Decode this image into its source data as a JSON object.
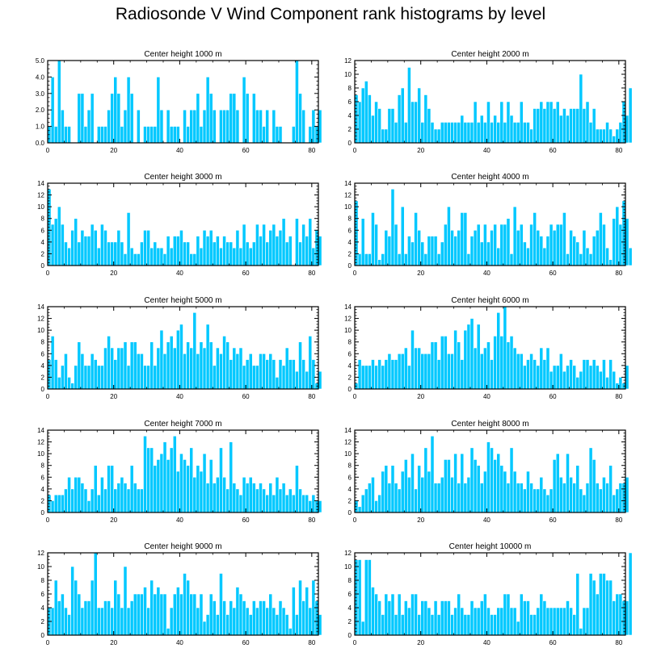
{
  "title": "Radiosonde V Wind Component rank histograms by level",
  "bar_color": "#00C8FF",
  "chart_data": [
    {
      "type": "bar",
      "title": "Center height 1000 m",
      "xlim": [
        0,
        82
      ],
      "ylim": [
        0,
        5
      ],
      "yticks": [
        0,
        1,
        2,
        3,
        4,
        5
      ],
      "ytick_labels": [
        "0.0",
        "1.0",
        "2.0",
        "3.0",
        "4.0",
        "5.0"
      ],
      "xticks": [
        0,
        20,
        40,
        60,
        80
      ],
      "xtick_labels": [
        "0",
        "20",
        "40",
        "60",
        "80"
      ],
      "values": [
        1,
        4,
        1,
        5,
        2,
        1,
        1,
        0,
        0,
        3,
        3,
        1,
        2,
        3,
        0,
        1,
        1,
        1,
        2,
        3,
        4,
        3,
        1,
        2,
        4,
        3,
        0,
        2,
        0,
        1,
        1,
        1,
        1,
        4,
        2,
        0,
        2,
        1,
        1,
        1,
        0,
        2,
        1,
        2,
        2,
        3,
        1,
        2,
        4,
        3,
        2,
        0,
        2,
        2,
        2,
        3,
        3,
        2,
        0,
        4,
        3,
        0,
        3,
        2,
        2,
        1,
        2,
        0,
        2,
        1,
        1,
        0,
        0,
        0,
        1,
        5,
        3,
        2,
        0,
        1,
        2,
        1,
        2
      ]
    },
    {
      "type": "bar",
      "title": "Center height 2000 m",
      "xlim": [
        0,
        82
      ],
      "ylim": [
        0,
        12
      ],
      "yticks": [
        0,
        2,
        4,
        6,
        8,
        10,
        12
      ],
      "ytick_labels": [
        "0",
        "2",
        "4",
        "6",
        "8",
        "10",
        "12"
      ],
      "xticks": [
        0,
        20,
        40,
        60,
        80
      ],
      "xtick_labels": [
        "0",
        "20",
        "40",
        "60",
        "80"
      ],
      "values": [
        7,
        6,
        8,
        9,
        7,
        4,
        6,
        5,
        2,
        2,
        5,
        5,
        3,
        7,
        8,
        3,
        11,
        6,
        6,
        8,
        3,
        7,
        5,
        3,
        2,
        2,
        3,
        3,
        3,
        3,
        3,
        3,
        4,
        3,
        3,
        3,
        6,
        3,
        4,
        3,
        6,
        3,
        4,
        3,
        6,
        3,
        6,
        4,
        3,
        3,
        6,
        3,
        3,
        2,
        5,
        5,
        6,
        5,
        6,
        6,
        5,
        6,
        4,
        5,
        4,
        5,
        5,
        5,
        10,
        5,
        6,
        3,
        5,
        2,
        2,
        2,
        3,
        2,
        1,
        2,
        3,
        6,
        4,
        8
      ]
    },
    {
      "type": "bar",
      "title": "Center height 3000 m",
      "xlim": [
        0,
        82
      ],
      "ylim": [
        0,
        14
      ],
      "yticks": [
        0,
        2,
        4,
        6,
        8,
        10,
        12,
        14
      ],
      "ytick_labels": [
        "0",
        "2",
        "4",
        "6",
        "8",
        "10",
        "12",
        "14"
      ],
      "xticks": [
        0,
        20,
        40,
        60,
        80
      ],
      "xtick_labels": [
        "0",
        "20",
        "40",
        "60",
        "80"
      ],
      "values": [
        13,
        7,
        8,
        10,
        7,
        4,
        3,
        6,
        8,
        4,
        6,
        5,
        5,
        7,
        6,
        3,
        7,
        6,
        4,
        4,
        4,
        6,
        4,
        2,
        9,
        3,
        2,
        2,
        4,
        6,
        6,
        3,
        4,
        3,
        3,
        2,
        5,
        3,
        5,
        5,
        6,
        4,
        4,
        2,
        2,
        5,
        3,
        6,
        5,
        6,
        4,
        5,
        3,
        5,
        4,
        4,
        3,
        6,
        3,
        7,
        4,
        3,
        4,
        7,
        5,
        7,
        4,
        6,
        7,
        5,
        6,
        8,
        4,
        5,
        0,
        8,
        4,
        7,
        5,
        8,
        3,
        6,
        5
      ]
    },
    {
      "type": "bar",
      "title": "Center height 4000 m",
      "xlim": [
        0,
        82
      ],
      "ylim": [
        0,
        14
      ],
      "yticks": [
        0,
        2,
        4,
        6,
        8,
        10,
        12,
        14
      ],
      "ytick_labels": [
        "0",
        "2",
        "4",
        "6",
        "8",
        "10",
        "12",
        "14"
      ],
      "xticks": [
        0,
        20,
        40,
        60,
        80
      ],
      "xtick_labels": [
        "0",
        "20",
        "40",
        "60",
        "80"
      ],
      "values": [
        11,
        2,
        8,
        2,
        2,
        9,
        7,
        1,
        2,
        6,
        5,
        13,
        7,
        2,
        10,
        2,
        5,
        4,
        9,
        6,
        4,
        2,
        5,
        5,
        5,
        2,
        4,
        7,
        10,
        6,
        5,
        6,
        9,
        9,
        2,
        5,
        6,
        7,
        4,
        7,
        4,
        6,
        7,
        3,
        7,
        7,
        8,
        2,
        10,
        6,
        7,
        4,
        3,
        7,
        9,
        6,
        5,
        3,
        5,
        7,
        6,
        7,
        7,
        9,
        2,
        6,
        5,
        4,
        2,
        6,
        3,
        2,
        5,
        6,
        9,
        7,
        3,
        1,
        8,
        10,
        7,
        11,
        8,
        3
      ]
    },
    {
      "type": "bar",
      "title": "Center height 5000 m",
      "xlim": [
        0,
        82
      ],
      "ylim": [
        0,
        14
      ],
      "yticks": [
        0,
        2,
        4,
        6,
        8,
        10,
        12,
        14
      ],
      "ytick_labels": [
        "0",
        "2",
        "4",
        "6",
        "8",
        "10",
        "12",
        "14"
      ],
      "xticks": [
        0,
        20,
        40,
        60,
        80
      ],
      "xtick_labels": [
        "0",
        "20",
        "40",
        "60",
        "80"
      ],
      "values": [
        5,
        9,
        5,
        2,
        4,
        6,
        2,
        1,
        4,
        8,
        6,
        4,
        4,
        6,
        5,
        4,
        4,
        7,
        9,
        7,
        5,
        7,
        7,
        8,
        4,
        8,
        8,
        6,
        6,
        4,
        4,
        8,
        4,
        7,
        10,
        6,
        8,
        9,
        7,
        10,
        11,
        6,
        8,
        7,
        13,
        6,
        8,
        7,
        11,
        8,
        4,
        7,
        6,
        9,
        8,
        5,
        7,
        6,
        7,
        4,
        5,
        6,
        4,
        4,
        6,
        6,
        5,
        6,
        5,
        2,
        5,
        4,
        7,
        5,
        5,
        3,
        8,
        5,
        3,
        9,
        5,
        1,
        3
      ]
    },
    {
      "type": "bar",
      "title": "Center height 6000 m",
      "xlim": [
        0,
        82
      ],
      "ylim": [
        0,
        14
      ],
      "yticks": [
        0,
        2,
        4,
        6,
        8,
        10,
        12,
        14
      ],
      "ytick_labels": [
        "0",
        "2",
        "4",
        "6",
        "8",
        "10",
        "12",
        "14"
      ],
      "xticks": [
        0,
        20,
        40,
        60,
        80
      ],
      "xtick_labels": [
        "0",
        "20",
        "40",
        "60",
        "80"
      ],
      "values": [
        1,
        5,
        4,
        4,
        4,
        5,
        4,
        5,
        4,
        5,
        6,
        5,
        5,
        6,
        6,
        7,
        4,
        10,
        7,
        7,
        6,
        6,
        6,
        8,
        8,
        5,
        9,
        9,
        6,
        6,
        10,
        8,
        5,
        10,
        11,
        12,
        7,
        11,
        6,
        7,
        8,
        5,
        9,
        13,
        9,
        14,
        8,
        9,
        7,
        6,
        6,
        4,
        5,
        6,
        5,
        4,
        7,
        5,
        7,
        3,
        4,
        4,
        6,
        3,
        4,
        5,
        4,
        2,
        3,
        5,
        5,
        4,
        5,
        4,
        3,
        5,
        2,
        5,
        3,
        1,
        2,
        1,
        4
      ]
    },
    {
      "type": "bar",
      "title": "Center height 7000 m",
      "xlim": [
        0,
        82
      ],
      "ylim": [
        0,
        14
      ],
      "yticks": [
        0,
        2,
        4,
        6,
        8,
        10,
        12,
        14
      ],
      "ytick_labels": [
        "0",
        "2",
        "4",
        "6",
        "8",
        "10",
        "12",
        "14"
      ],
      "xticks": [
        0,
        20,
        40,
        60,
        80
      ],
      "xtick_labels": [
        "0",
        "20",
        "40",
        "60",
        "80"
      ],
      "values": [
        3,
        2,
        3,
        3,
        3,
        4,
        6,
        4,
        6,
        6,
        5,
        4,
        2,
        4,
        8,
        3,
        6,
        4,
        8,
        8,
        4,
        5,
        6,
        5,
        4,
        8,
        5,
        4,
        4,
        13,
        11,
        11,
        8,
        9,
        10,
        12,
        9,
        11,
        13,
        7,
        10,
        9,
        8,
        11,
        6,
        8,
        7,
        10,
        5,
        9,
        5,
        6,
        11,
        6,
        4,
        12,
        5,
        4,
        3,
        6,
        5,
        6,
        5,
        4,
        5,
        4,
        3,
        5,
        3,
        6,
        4,
        5,
        3,
        4,
        3,
        8,
        4,
        3,
        3,
        2,
        3,
        2,
        2
      ]
    },
    {
      "type": "bar",
      "title": "Center height 8000 m",
      "xlim": [
        0,
        82
      ],
      "ylim": [
        0,
        14
      ],
      "yticks": [
        0,
        2,
        4,
        6,
        8,
        10,
        12,
        14
      ],
      "ytick_labels": [
        "0",
        "2",
        "4",
        "6",
        "8",
        "10",
        "12",
        "14"
      ],
      "xticks": [
        0,
        20,
        40,
        60,
        80
      ],
      "xtick_labels": [
        "0",
        "20",
        "40",
        "60",
        "80"
      ],
      "values": [
        2,
        1,
        3,
        4,
        5,
        6,
        2,
        3,
        7,
        8,
        5,
        8,
        5,
        4,
        7,
        9,
        6,
        10,
        4,
        8,
        6,
        11,
        7,
        13,
        5,
        5,
        6,
        9,
        9,
        6,
        10,
        5,
        10,
        5,
        6,
        11,
        9,
        8,
        5,
        7,
        12,
        11,
        9,
        10,
        8,
        7,
        5,
        11,
        7,
        5,
        5,
        4,
        7,
        5,
        4,
        4,
        6,
        4,
        3,
        4,
        9,
        10,
        6,
        5,
        10,
        6,
        5,
        8,
        4,
        3,
        5,
        11,
        9,
        5,
        4,
        6,
        5,
        8,
        3,
        4,
        5,
        5,
        6
      ]
    },
    {
      "type": "bar",
      "title": "Center height 9000 m",
      "xlim": [
        0,
        82
      ],
      "ylim": [
        0,
        12
      ],
      "yticks": [
        0,
        2,
        4,
        6,
        8,
        10,
        12
      ],
      "ytick_labels": [
        "0",
        "2",
        "4",
        "6",
        "8",
        "10",
        "12"
      ],
      "xticks": [
        0,
        20,
        40,
        60,
        80
      ],
      "xtick_labels": [
        "0",
        "20",
        "40",
        "60",
        "80"
      ],
      "values": [
        4,
        4,
        8,
        5,
        6,
        4,
        3,
        10,
        8,
        6,
        4,
        5,
        5,
        8,
        12,
        4,
        4,
        5,
        5,
        4,
        8,
        6,
        4,
        10,
        4,
        5,
        6,
        6,
        6,
        7,
        4,
        8,
        6,
        7,
        6,
        6,
        1,
        4,
        6,
        7,
        6,
        9,
        8,
        6,
        6,
        4,
        6,
        2,
        3,
        6,
        5,
        3,
        9,
        5,
        3,
        5,
        4,
        7,
        6,
        5,
        4,
        3,
        5,
        4,
        5,
        5,
        4,
        6,
        4,
        3,
        5,
        4,
        3,
        1,
        7,
        3,
        8,
        5,
        7,
        4,
        8,
        5,
        3
      ]
    },
    {
      "type": "bar",
      "title": "Center height 10000 m",
      "xlim": [
        0,
        82
      ],
      "ylim": [
        0,
        12
      ],
      "yticks": [
        0,
        2,
        4,
        6,
        8,
        10,
        12
      ],
      "ytick_labels": [
        "0",
        "2",
        "4",
        "6",
        "8",
        "10",
        "12"
      ],
      "xticks": [
        0,
        20,
        40,
        60,
        80
      ],
      "xtick_labels": [
        "0",
        "20",
        "40",
        "60",
        "80"
      ],
      "values": [
        11,
        11,
        2,
        11,
        11,
        7,
        6,
        5,
        3,
        6,
        5,
        6,
        3,
        6,
        3,
        5,
        4,
        6,
        6,
        3,
        5,
        5,
        4,
        3,
        5,
        3,
        5,
        5,
        5,
        3,
        4,
        6,
        4,
        3,
        3,
        5,
        4,
        4,
        5,
        6,
        4,
        3,
        3,
        4,
        4,
        6,
        6,
        4,
        4,
        2,
        6,
        5,
        5,
        3,
        3,
        4,
        6,
        5,
        4,
        4,
        4,
        4,
        4,
        4,
        5,
        4,
        3,
        9,
        1,
        4,
        4,
        9,
        8,
        6,
        9,
        9,
        8,
        8,
        5,
        6,
        6,
        5,
        5,
        12
      ]
    }
  ]
}
